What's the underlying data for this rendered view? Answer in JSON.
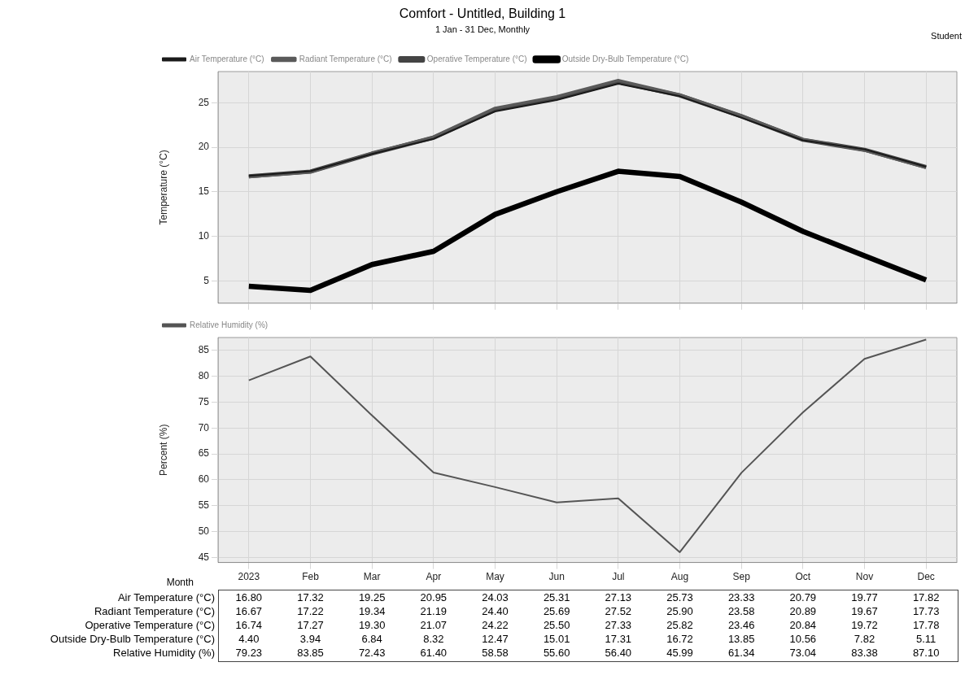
{
  "chart_data": [
    {
      "type": "line",
      "title": "Comfort - Untitled, Building 1",
      "subtitle": "1 Jan - 31 Dec, Monthly",
      "annotations": [
        "Student"
      ],
      "ylabel": "Temperature (°C)",
      "categories": [
        null,
        null,
        null,
        null,
        null,
        null,
        null,
        null,
        null,
        null,
        null,
        null
      ],
      "ylim": [
        2.5,
        28.5
      ],
      "yticks": [
        5,
        10,
        15,
        20,
        25
      ],
      "grid": true,
      "legend": "top left",
      "marker": "none",
      "line_style": "solid",
      "tick_labels": "y",
      "series": [
        {
          "name": "Air Temperature (°C)",
          "color": "#1a1a1a",
          "values": [
            16.8,
            17.32,
            19.25,
            20.95,
            24.03,
            25.31,
            27.13,
            25.73,
            23.33,
            20.79,
            19.77,
            17.82
          ],
          "value_labels": [
            "16.80",
            "17.32",
            "19.25",
            "20.95",
            "24.03",
            "25.31",
            "27.13",
            "25.73",
            "23.33",
            "20.79",
            "19.77",
            "17.82"
          ]
        },
        {
          "name": "Radiant Temperature (°C)",
          "color": "#5a5a5a",
          "values": [
            16.67,
            17.22,
            19.34,
            21.19,
            24.4,
            25.69,
            27.52,
            25.9,
            23.58,
            20.89,
            19.67,
            17.73
          ],
          "value_labels": [
            "16.67",
            "17.22",
            "19.34",
            "21.19",
            "24.40",
            "25.69",
            "27.52",
            "25.90",
            "23.58",
            "20.89",
            "19.67",
            "17.73"
          ]
        },
        {
          "name": "Operative Temperature (°C)",
          "color": "#444444",
          "values": [
            16.74,
            17.27,
            19.3,
            21.07,
            24.22,
            25.5,
            27.33,
            25.82,
            23.46,
            20.84,
            19.72,
            17.78
          ],
          "value_labels": [
            "16.74",
            "17.27",
            "19.30",
            "21.07",
            "24.22",
            "25.50",
            "27.33",
            "25.82",
            "23.46",
            "20.84",
            "19.72",
            "17.78"
          ]
        },
        {
          "name": "Outside Dry-Bulb Temperature (°C)",
          "color": "#000000",
          "values": [
            4.4,
            3.94,
            6.84,
            8.32,
            12.47,
            15.01,
            17.31,
            16.72,
            13.85,
            10.56,
            7.82,
            5.11
          ],
          "value_labels": [
            "4.40",
            "3.94",
            "6.84",
            "8.32",
            "12.47",
            "15.01",
            "17.31",
            "16.72",
            "13.85",
            "10.56",
            "7.82",
            "5.11"
          ]
        }
      ]
    },
    {
      "type": "line",
      "ylabel": "Percent (%)",
      "xlabel": "Month",
      "categories": [
        "2023",
        "Feb",
        "Mar",
        "Apr",
        "May",
        "Jun",
        "Jul",
        "Aug",
        "Sep",
        "Oct",
        "Nov",
        "Dec"
      ],
      "ylim": [
        44,
        87.5
      ],
      "yticks": [
        45,
        50,
        55,
        60,
        65,
        70,
        75,
        80,
        85
      ],
      "grid": true,
      "legend": "top left",
      "marker": "none",
      "line_style": "solid",
      "series": [
        {
          "name": "Relative Humidity (%)",
          "color": "#555555",
          "values": [
            79.23,
            83.85,
            72.43,
            61.4,
            58.58,
            55.6,
            56.4,
            45.99,
            61.34,
            73.04,
            83.38,
            87.1
          ],
          "value_labels": [
            "79.23",
            "83.85",
            "72.43",
            "61.40",
            "58.58",
            "55.60",
            "56.40",
            "45.99",
            "61.34",
            "73.04",
            "83.38",
            "87.10"
          ]
        }
      ]
    }
  ]
}
